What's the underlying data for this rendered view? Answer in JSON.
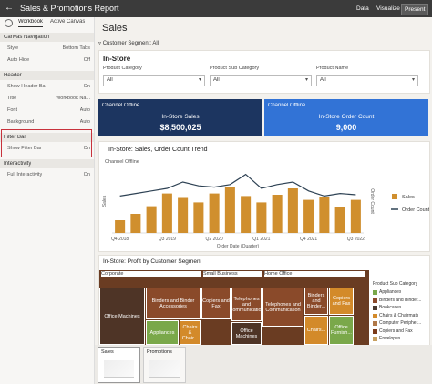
{
  "top_bar": {
    "title": "Sales & Promotions Report",
    "actions": [
      "Data",
      "Visualize",
      "Present"
    ]
  },
  "left_panel": {
    "tabs": [
      "Workbook",
      "Active Canvas"
    ],
    "sections": [
      {
        "title": "Canvas Navigation",
        "rows": [
          [
            "Style",
            "Bottom Tabs"
          ],
          [
            "Auto Hide",
            "Off"
          ]
        ]
      },
      {
        "title": "Header",
        "rows": [
          [
            "Show Header Bar",
            "On"
          ],
          [
            "Title",
            "Workbook Na..."
          ],
          [
            "Font",
            "Auto"
          ],
          [
            "Background",
            "Auto"
          ]
        ]
      },
      {
        "title": "Filter Bar",
        "rows": [
          [
            "Show Filter Bar",
            "On"
          ]
        ]
      },
      {
        "title": "Interactivity",
        "rows": [
          [
            "Full Interactivity",
            "On"
          ]
        ]
      }
    ]
  },
  "canvas": {
    "title": "Sales",
    "filter": "Customer Segment: All",
    "panel_title": "In-Store",
    "filters": [
      {
        "label": "Product Category",
        "value": "All"
      },
      {
        "label": "Product Sub Category",
        "value": "All"
      },
      {
        "label": "Product Name",
        "value": "All"
      }
    ],
    "kpis": [
      {
        "subtitle": "Channel Offline",
        "title": "In-Store Sales",
        "value": "$8,500,025",
        "color": "#1c3560"
      },
      {
        "subtitle": "Channel Offline",
        "title": "In-Store Order Count",
        "value": "9,000",
        "color": "#3273d6"
      }
    ]
  },
  "chart_data": {
    "type": "bar",
    "title": "In-Store: Sales, Order Count Trend",
    "subtitle": "Channel Offline",
    "y_label": "Sales",
    "y2_label": "Order Count",
    "x_label": "Order Date (Quarter)",
    "categories": [
      "Q4 2018",
      null,
      null,
      "Q3 2019",
      null,
      null,
      "Q2 2020",
      null,
      null,
      "Q1 2021",
      null,
      null,
      "Q4 2021",
      null,
      null,
      "Q3 2022"
    ],
    "series": [
      {
        "name": "Sales",
        "color": "#d08f2e",
        "values": [
          20,
          30,
          42,
          62,
          55,
          48,
          62,
          72,
          58,
          48,
          60,
          70,
          52,
          56,
          40,
          52
        ]
      },
      {
        "name": "Order Count",
        "color": "#2e4254",
        "type": "line",
        "axis": "y2",
        "values": [
          58,
          62,
          66,
          70,
          80,
          74,
          72,
          76,
          92,
          70,
          76,
          80,
          66,
          58,
          62,
          60
        ]
      }
    ],
    "ylim": [
      0,
      100
    ],
    "y2lim": [
      0,
      100
    ]
  },
  "treemap": {
    "title": "In-Store: Profit by Customer Segment",
    "legend_title": "Product Sub Category",
    "groups": [
      {
        "name": "Corporate",
        "tiles": [
          "Office Machines",
          "Binders and Binder Accessories",
          "Appliances",
          "Chairs & Chair..."
        ]
      },
      {
        "name": "Small Business",
        "tiles": [
          "Copiers and Fax",
          "Telephones and Communication",
          "Office Machines"
        ]
      },
      {
        "name": "Home Office",
        "tiles": [
          "Telephones and Communication",
          "Binders and Binder...",
          "Copiers and Fax",
          "Office Furnish...",
          "Chairs..."
        ]
      }
    ],
    "legend": [
      {
        "name": "Appliances",
        "color": "#7aa84a"
      },
      {
        "name": "Binders and Binder...",
        "color": "#8b4a2b"
      },
      {
        "name": "Bookcases",
        "color": "#4a3a30"
      },
      {
        "name": "Chairs & Chairmats",
        "color": "#d38a2a"
      },
      {
        "name": "Computer Peripher...",
        "color": "#b07848"
      },
      {
        "name": "Copiers and Fax",
        "color": "#7a3a1a"
      },
      {
        "name": "Envelopes",
        "color": "#c8a060"
      }
    ]
  },
  "tabs": [
    "Sales",
    "Promotions"
  ]
}
